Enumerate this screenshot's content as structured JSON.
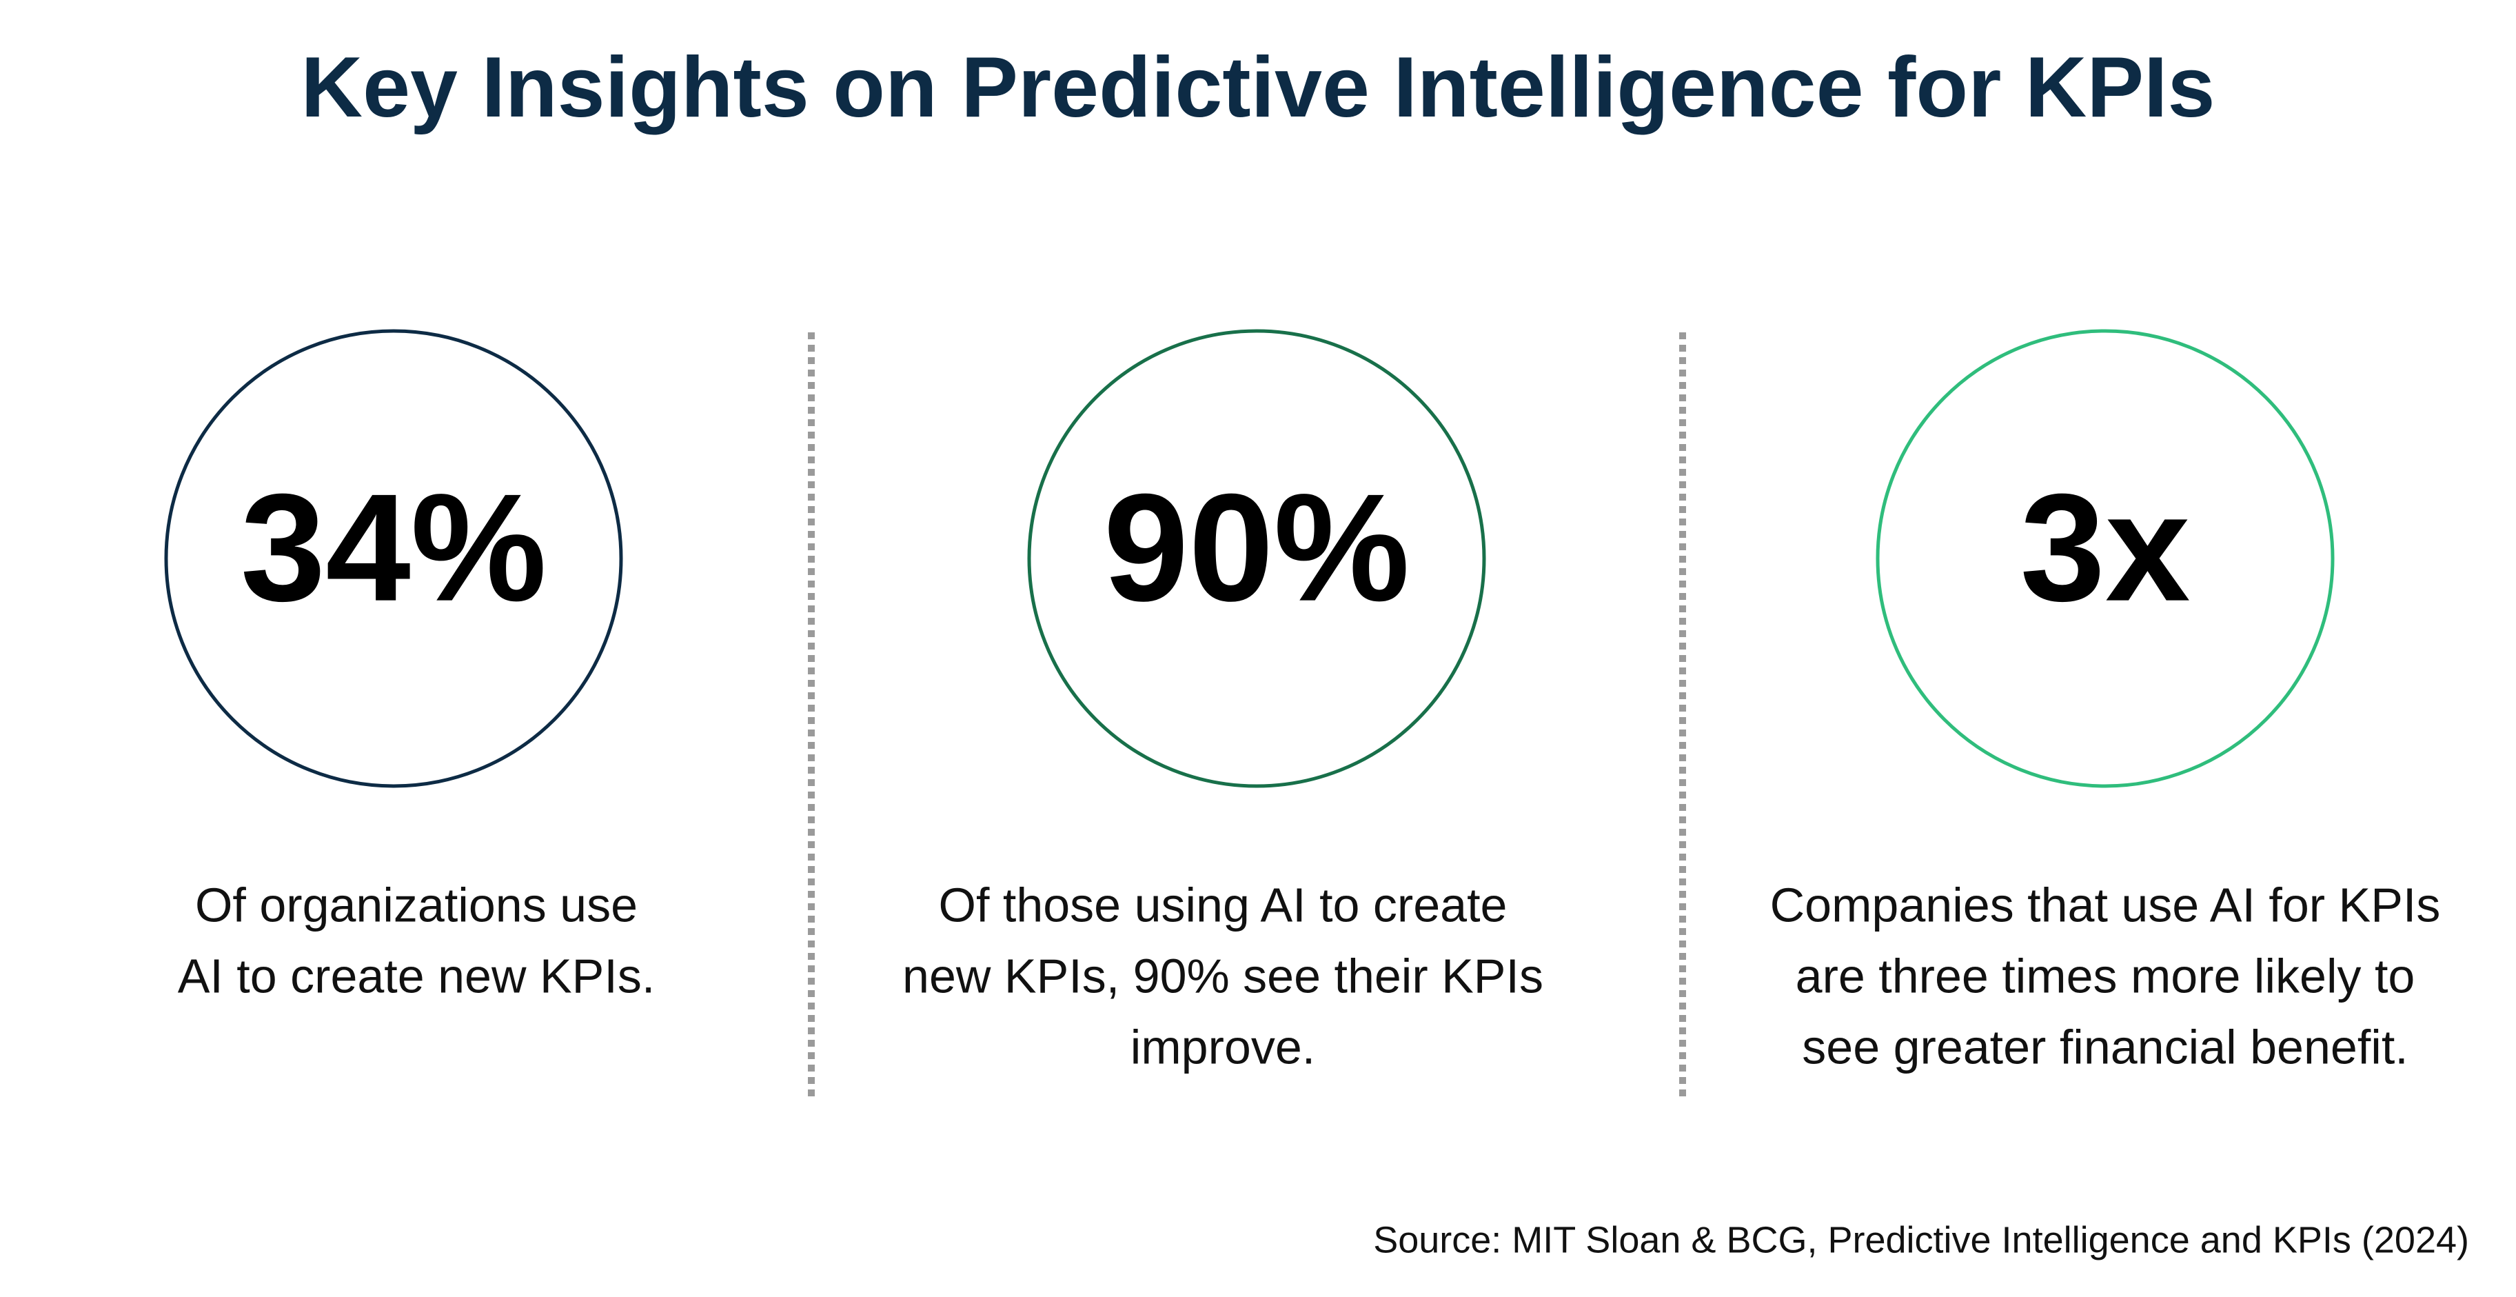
{
  "title": "Key Insights on Predictive Intelligence for KPIs",
  "stats": [
    {
      "value": "34%",
      "color": "#0d2b45",
      "description_lines": [
        "Of organizations use",
        "AI to create new KPIs."
      ]
    },
    {
      "value": "90%",
      "color": "#18704a",
      "description_lines": [
        "Of those using AI to create",
        "new KPIs, 90% see their KPIs",
        "improve."
      ]
    },
    {
      "value": "3x",
      "color": "#2fbd7c",
      "description_lines": [
        "Companies that use AI for KPIs",
        "are three times more likely to",
        "see greater financial benefit."
      ]
    }
  ],
  "source": "Source: MIT Sloan & BCG, Predictive Intelligence and KPIs (2024)"
}
